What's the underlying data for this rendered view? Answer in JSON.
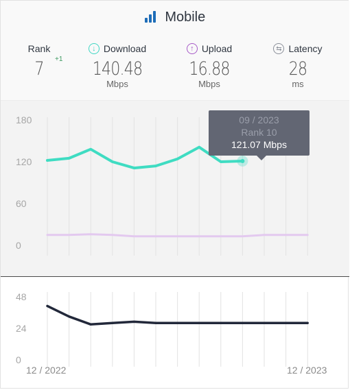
{
  "header": {
    "title": "Mobile",
    "icon": "signal-bars-icon"
  },
  "metrics": {
    "rank": {
      "label": "Rank",
      "value": "7",
      "delta": "+1"
    },
    "download": {
      "label": "Download",
      "value": "140.48",
      "unit": "Mbps",
      "icon": "download-arrow-icon",
      "color": "#3fd6c3"
    },
    "upload": {
      "label": "Upload",
      "value": "16.88",
      "unit": "Mbps",
      "icon": "upload-arrow-icon",
      "color": "#a659c7"
    },
    "latency": {
      "label": "Latency",
      "value": "28",
      "unit": "ms",
      "icon": "latency-arrows-icon",
      "color": "#8a8f99"
    }
  },
  "tooltip": {
    "date": "09 / 2023",
    "rank": "Rank 10",
    "value": "121.07 Mbps"
  },
  "x_labels": {
    "start": "12 / 2022",
    "end": "12 / 2023"
  },
  "chart_data": [
    {
      "type": "line",
      "x": [
        "12 / 2022",
        "01 / 2023",
        "02 / 2023",
        "03 / 2023",
        "04 / 2023",
        "05 / 2023",
        "06 / 2023",
        "07 / 2023",
        "08 / 2023",
        "09 / 2023",
        "10 / 2023",
        "11 / 2023",
        "12 / 2023"
      ],
      "series": [
        {
          "color": "#3fdcc2",
          "values": [
            122,
            125,
            138,
            120,
            111,
            114,
            124,
            141,
            120,
            121,
            null,
            null,
            null
          ]
        },
        {
          "color": "#e3c9ef",
          "values": [
            15,
            15,
            16,
            15,
            13,
            13,
            13,
            13,
            13,
            13,
            15,
            15,
            15
          ]
        }
      ],
      "y_ticks": [
        0,
        60,
        120,
        180
      ],
      "ylim": [
        0,
        180
      ],
      "highlight_index": 9,
      "grid": true
    },
    {
      "type": "line",
      "x": [
        "12 / 2022",
        "01 / 2023",
        "02 / 2023",
        "03 / 2023",
        "04 / 2023",
        "05 / 2023",
        "06 / 2023",
        "07 / 2023",
        "08 / 2023",
        "09 / 2023",
        "10 / 2023",
        "11 / 2023",
        "12 / 2023"
      ],
      "series": [
        {
          "color": "#22283a",
          "values": [
            41,
            33,
            27,
            28,
            29,
            28,
            28,
            28,
            28,
            28,
            28,
            28,
            28
          ]
        }
      ],
      "y_ticks": [
        0,
        24,
        48
      ],
      "ylim": [
        0,
        48
      ],
      "grid": true
    }
  ]
}
